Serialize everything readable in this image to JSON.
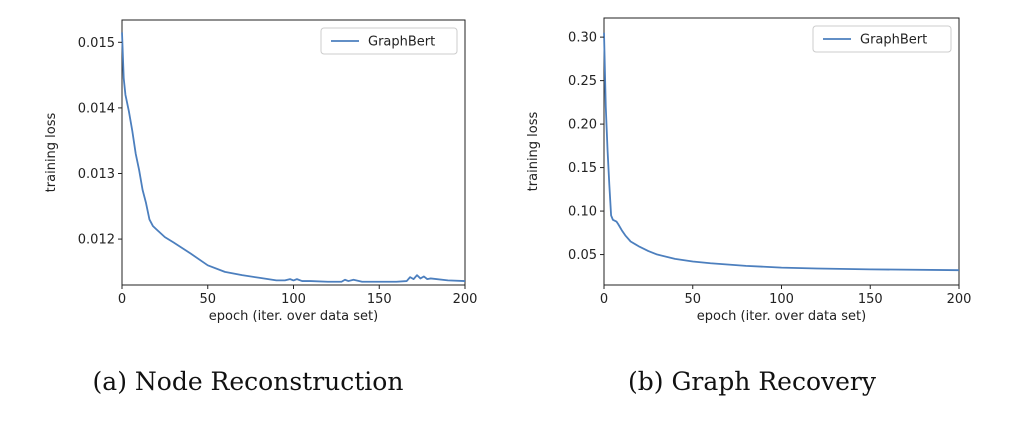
{
  "chart_data": [
    {
      "type": "line",
      "caption": "(a) Node Reconstruction",
      "xlabel": "epoch (iter. over data set)",
      "ylabel": "training loss",
      "xlim": [
        0,
        200
      ],
      "ylim": [
        0.0113,
        0.01534
      ],
      "xticks": [
        0,
        50,
        100,
        150,
        200
      ],
      "xtick_labels": [
        "0",
        "50",
        "100",
        "150",
        "200"
      ],
      "yticks": [
        0.012,
        0.013,
        0.014,
        0.015
      ],
      "ytick_labels": [
        "0.012",
        "0.013",
        "0.014",
        "0.015"
      ],
      "grid": false,
      "legend": "top-right",
      "series": [
        {
          "name": "GraphBert",
          "color": "#4c7fbe",
          "x": [
            0,
            1,
            2,
            4,
            6,
            8,
            10,
            12,
            14,
            16,
            18,
            20,
            25,
            30,
            40,
            50,
            60,
            70,
            80,
            90,
            95,
            98,
            100,
            102,
            105,
            110,
            120,
            128,
            130,
            132,
            135,
            140,
            150,
            160,
            166,
            168,
            170,
            172,
            174,
            176,
            178,
            180,
            190,
            200
          ],
          "y": [
            0.01515,
            0.01445,
            0.0142,
            0.01395,
            0.01365,
            0.0133,
            0.01305,
            0.01275,
            0.01255,
            0.0123,
            0.0122,
            0.01215,
            0.01203,
            0.01195,
            0.01178,
            0.0116,
            0.0115,
            0.01145,
            0.01141,
            0.01137,
            0.01137,
            0.01139,
            0.01137,
            0.01139,
            0.01136,
            0.01136,
            0.01135,
            0.01135,
            0.01138,
            0.01136,
            0.01138,
            0.01135,
            0.01135,
            0.01135,
            0.01136,
            0.01142,
            0.01139,
            0.01145,
            0.0114,
            0.01143,
            0.01139,
            0.0114,
            0.01137,
            0.01136
          ]
        }
      ]
    },
    {
      "type": "line",
      "caption": "(b) Graph Recovery",
      "xlabel": "epoch (iter. over data set)",
      "ylabel": "training loss",
      "xlim": [
        0,
        200
      ],
      "ylim": [
        0.015,
        0.322
      ],
      "xticks": [
        0,
        50,
        100,
        150,
        200
      ],
      "xtick_labels": [
        "0",
        "50",
        "100",
        "150",
        "200"
      ],
      "yticks": [
        0.05,
        0.1,
        0.15,
        0.2,
        0.25,
        0.3
      ],
      "ytick_labels": [
        "0.05",
        "0.10",
        "0.15",
        "0.20",
        "0.25",
        "0.30"
      ],
      "grid": false,
      "legend": "top-right",
      "series": [
        {
          "name": "GraphBert",
          "color": "#4c7fbe",
          "x": [
            0,
            1,
            2,
            3,
            4,
            5,
            7,
            8,
            10,
            12,
            15,
            20,
            25,
            30,
            40,
            50,
            60,
            80,
            100,
            120,
            150,
            200
          ],
          "y": [
            0.305,
            0.22,
            0.17,
            0.13,
            0.095,
            0.09,
            0.088,
            0.085,
            0.078,
            0.072,
            0.065,
            0.059,
            0.054,
            0.05,
            0.045,
            0.042,
            0.04,
            0.037,
            0.035,
            0.034,
            0.033,
            0.032
          ]
        }
      ]
    }
  ]
}
